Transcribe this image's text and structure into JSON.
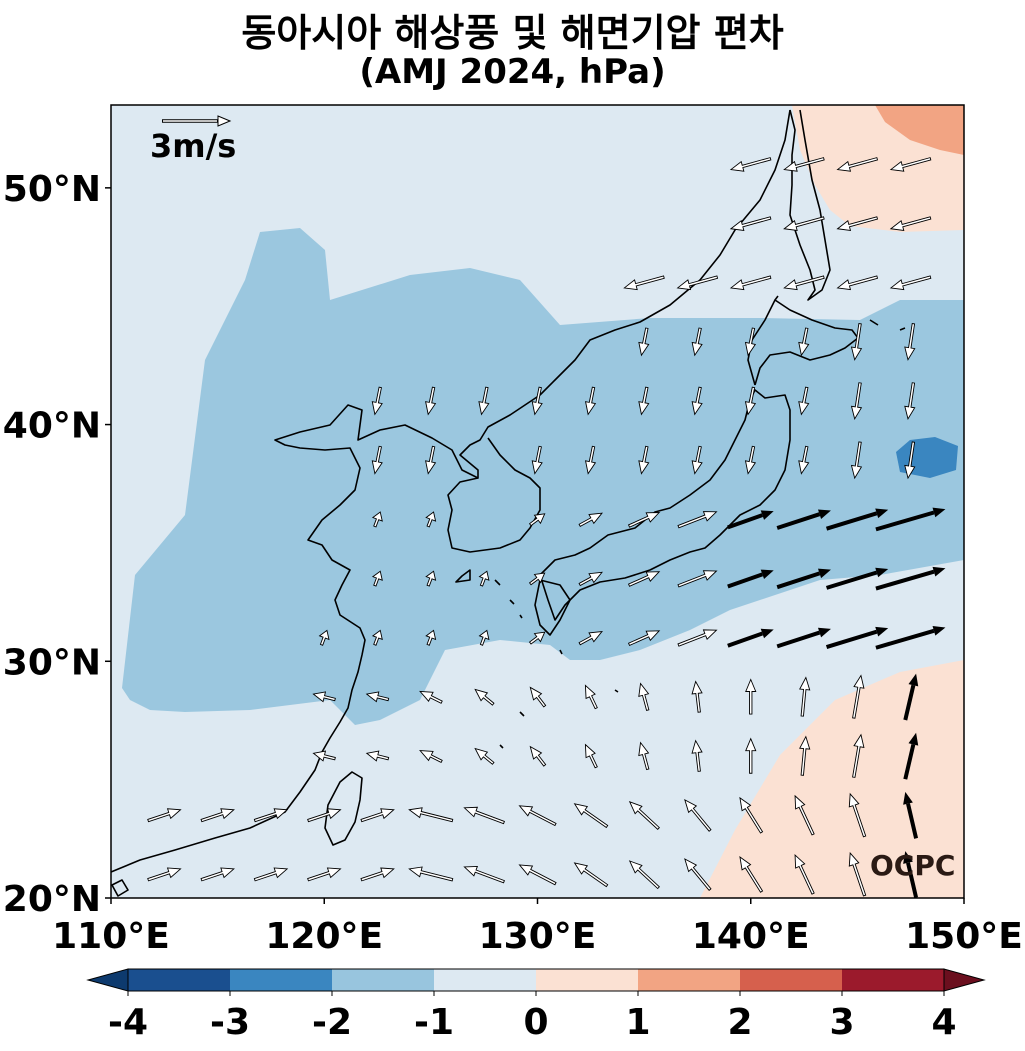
{
  "title": {
    "line1": "동아시아 해상풍 및 해면기압 편차",
    "line2": "(AMJ 2024, hPa)"
  },
  "map": {
    "lon_range": [
      110,
      150
    ],
    "lat_range": [
      20,
      53.5
    ],
    "lat_ticks": [
      {
        "value": 20,
        "label": "20°N"
      },
      {
        "value": 30,
        "label": "30°N"
      },
      {
        "value": 40,
        "label": "40°N"
      },
      {
        "value": 50,
        "label": "50°N"
      }
    ],
    "lon_ticks": [
      {
        "value": 110,
        "label": "110°E"
      },
      {
        "value": 120,
        "label": "120°E"
      },
      {
        "value": 130,
        "label": "130°E"
      },
      {
        "value": 140,
        "label": "140°E"
      },
      {
        "value": 150,
        "label": "150°E"
      }
    ],
    "reference_vector": {
      "label": "3m/s",
      "speed_ms": 3
    },
    "watermark": "OCPC",
    "background_color": "#dde9f2"
  },
  "colorbar": {
    "labels": [
      "-4",
      "-3",
      "-2",
      "-1",
      "0",
      "1",
      "2",
      "3",
      "4"
    ],
    "colors": [
      "#1a4f8f",
      "#3a86c0",
      "#98c5de",
      "#dde9f2",
      "#fbe1d3",
      "#f2a483",
      "#d6604d",
      "#9b1a2c"
    ],
    "under_color": "#0d3a6e",
    "over_color": "#6b0f1e"
  }
}
